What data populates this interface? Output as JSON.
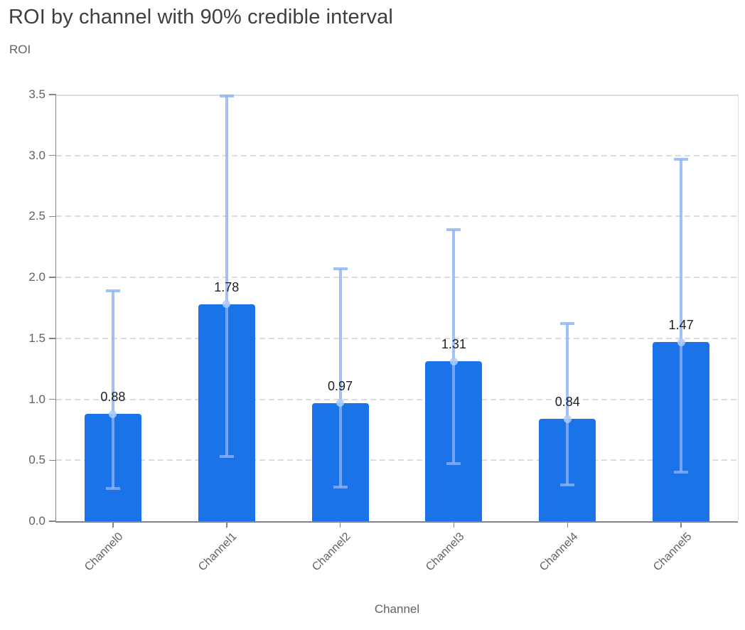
{
  "title": "ROI by channel with 90% credible interval",
  "y_axis_title": "ROI",
  "x_axis_title": "Channel",
  "colors": {
    "bar": "#1a73e8",
    "error_bar": "rgba(137, 178, 245, 0.8)",
    "mean_dot": "rgba(174, 203, 250, 0.85)",
    "axis_line": "#80868b",
    "grid_line": "#dadce0",
    "title_text": "#3c4043",
    "axis_text": "#5f6368",
    "value_label_text": "#1f1f1f"
  },
  "chart_data": {
    "type": "bar",
    "title": "ROI by channel with 90% credible interval",
    "xlabel": "Channel",
    "ylabel": "ROI",
    "categories": [
      "Channel0",
      "Channel1",
      "Channel2",
      "Channel3",
      "Channel4",
      "Channel5"
    ],
    "series": [
      {
        "name": "roi_mean",
        "values": [
          0.88,
          1.78,
          0.97,
          1.31,
          0.84,
          1.47
        ]
      },
      {
        "name": "ci_90_lower",
        "values": [
          0.27,
          0.53,
          0.28,
          0.47,
          0.3,
          0.4
        ]
      },
      {
        "name": "ci_90_upper",
        "values": [
          1.89,
          3.49,
          2.07,
          2.39,
          1.62,
          2.97
        ]
      }
    ],
    "value_labels": [
      "0.88",
      "1.78",
      "0.97",
      "1.31",
      "0.84",
      "1.47"
    ],
    "ylim": [
      0,
      3.5
    ],
    "ytick_step": 0.5,
    "ytick_labels": [
      "0.0",
      "0.5",
      "1.0",
      "1.5",
      "2.0",
      "2.5",
      "3.0",
      "3.5"
    ],
    "grid": true,
    "gridline_style": "dashed",
    "legend": false,
    "error_bars": true,
    "bar_label_position": "above"
  }
}
